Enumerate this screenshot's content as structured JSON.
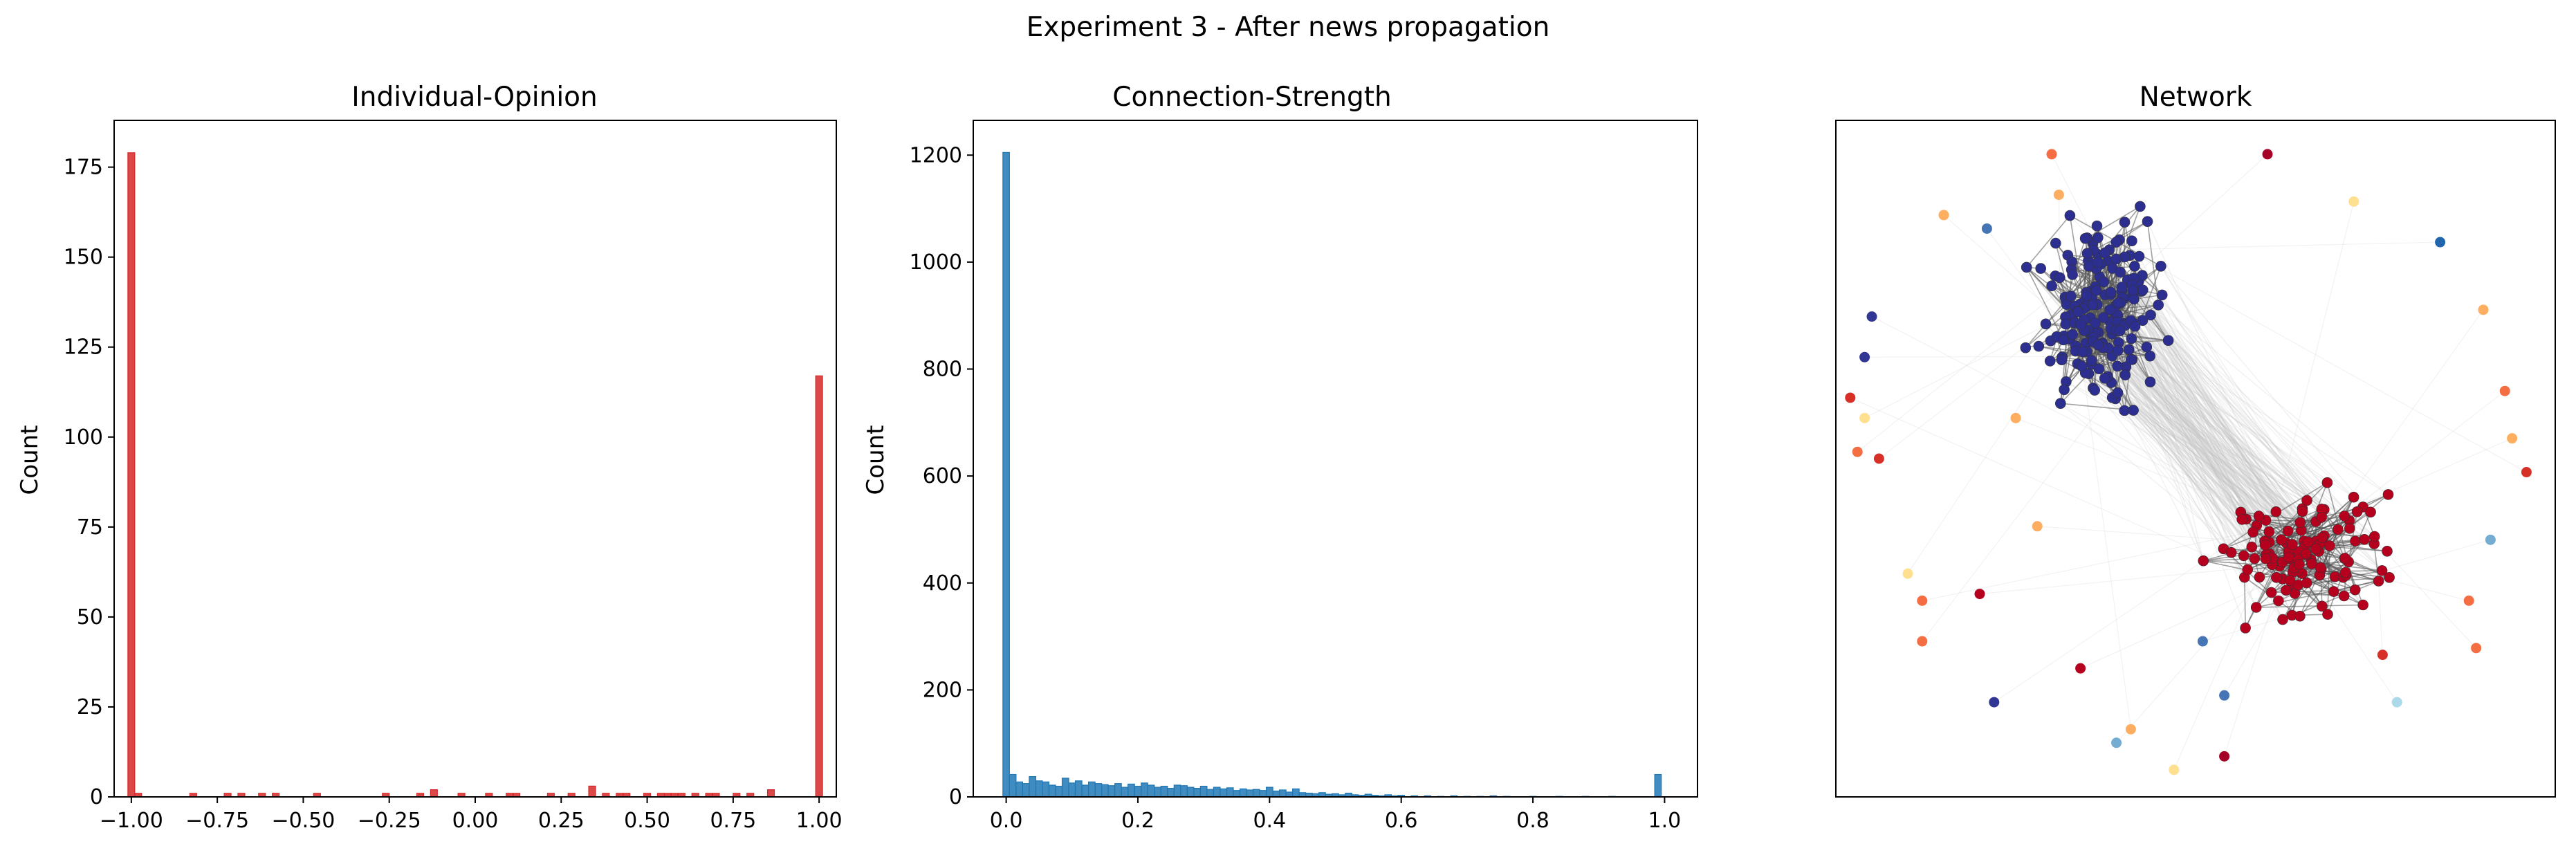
{
  "figure": {
    "title": "Experiment 3 - After news propagation"
  },
  "chart_data": [
    {
      "type": "bar",
      "subtype": "histogram",
      "title": "Individual-Opinion",
      "xlabel": "",
      "ylabel": "Count",
      "xlim": [
        -1.05,
        1.05
      ],
      "ylim": [
        0,
        188
      ],
      "bin_width": 0.02,
      "color": "#d62728",
      "xticks": [
        -1.0,
        -0.75,
        -0.5,
        -0.25,
        0.0,
        0.25,
        0.5,
        0.75,
        1.0
      ],
      "xtick_labels": [
        "−1.00",
        "−0.75",
        "−0.50",
        "−0.25",
        "0.00",
        "0.25",
        "0.50",
        "0.75",
        "1.00"
      ],
      "yticks": [
        0,
        25,
        50,
        75,
        100,
        125,
        150,
        175
      ],
      "ytick_labels": [
        "0",
        "25",
        "50",
        "75",
        "100",
        "125",
        "150",
        "175"
      ],
      "bins": [
        {
          "x": -1.0,
          "count": 179
        },
        {
          "x": -0.98,
          "count": 1
        },
        {
          "x": -0.82,
          "count": 1
        },
        {
          "x": -0.72,
          "count": 1
        },
        {
          "x": -0.68,
          "count": 1
        },
        {
          "x": -0.62,
          "count": 1
        },
        {
          "x": -0.58,
          "count": 1
        },
        {
          "x": -0.46,
          "count": 1
        },
        {
          "x": -0.26,
          "count": 1
        },
        {
          "x": -0.16,
          "count": 1
        },
        {
          "x": -0.12,
          "count": 2
        },
        {
          "x": -0.04,
          "count": 1
        },
        {
          "x": 0.04,
          "count": 1
        },
        {
          "x": 0.1,
          "count": 1
        },
        {
          "x": 0.12,
          "count": 1
        },
        {
          "x": 0.22,
          "count": 1
        },
        {
          "x": 0.28,
          "count": 1
        },
        {
          "x": 0.34,
          "count": 3
        },
        {
          "x": 0.38,
          "count": 1
        },
        {
          "x": 0.42,
          "count": 1
        },
        {
          "x": 0.44,
          "count": 1
        },
        {
          "x": 0.5,
          "count": 1
        },
        {
          "x": 0.54,
          "count": 1
        },
        {
          "x": 0.56,
          "count": 1
        },
        {
          "x": 0.58,
          "count": 1
        },
        {
          "x": 0.6,
          "count": 1
        },
        {
          "x": 0.64,
          "count": 1
        },
        {
          "x": 0.68,
          "count": 1
        },
        {
          "x": 0.7,
          "count": 1
        },
        {
          "x": 0.76,
          "count": 1
        },
        {
          "x": 0.8,
          "count": 1
        },
        {
          "x": 0.86,
          "count": 2
        },
        {
          "x": 1.0,
          "count": 117
        }
      ]
    },
    {
      "type": "bar",
      "subtype": "histogram",
      "title": "Connection-Strength",
      "xlabel": "",
      "ylabel": "Count",
      "xlim": [
        -0.05,
        1.05
      ],
      "ylim": [
        0,
        1265
      ],
      "bin_width": 0.01,
      "color": "#1f77b4",
      "xticks": [
        0.0,
        0.2,
        0.4,
        0.6,
        0.8,
        1.0
      ],
      "xtick_labels": [
        "0.0",
        "0.2",
        "0.4",
        "0.6",
        "0.8",
        "1.0"
      ],
      "yticks": [
        0,
        200,
        400,
        600,
        800,
        1000,
        1200
      ],
      "ytick_labels": [
        "0",
        "200",
        "400",
        "600",
        "800",
        "1000",
        "1200"
      ],
      "bins": [
        {
          "x": 0.0,
          "count": 1205
        },
        {
          "x": 0.01,
          "count": 42
        },
        {
          "x": 0.02,
          "count": 28
        },
        {
          "x": 0.03,
          "count": 25
        },
        {
          "x": 0.04,
          "count": 38
        },
        {
          "x": 0.05,
          "count": 30
        },
        {
          "x": 0.06,
          "count": 28
        },
        {
          "x": 0.07,
          "count": 22
        },
        {
          "x": 0.08,
          "count": 20
        },
        {
          "x": 0.09,
          "count": 35
        },
        {
          "x": 0.1,
          "count": 26
        },
        {
          "x": 0.11,
          "count": 30
        },
        {
          "x": 0.12,
          "count": 22
        },
        {
          "x": 0.13,
          "count": 28
        },
        {
          "x": 0.14,
          "count": 25
        },
        {
          "x": 0.15,
          "count": 23
        },
        {
          "x": 0.16,
          "count": 21
        },
        {
          "x": 0.17,
          "count": 25
        },
        {
          "x": 0.18,
          "count": 18
        },
        {
          "x": 0.19,
          "count": 24
        },
        {
          "x": 0.2,
          "count": 20
        },
        {
          "x": 0.21,
          "count": 26
        },
        {
          "x": 0.22,
          "count": 22
        },
        {
          "x": 0.23,
          "count": 18
        },
        {
          "x": 0.24,
          "count": 20
        },
        {
          "x": 0.25,
          "count": 16
        },
        {
          "x": 0.26,
          "count": 22
        },
        {
          "x": 0.27,
          "count": 21
        },
        {
          "x": 0.28,
          "count": 18
        },
        {
          "x": 0.29,
          "count": 16
        },
        {
          "x": 0.3,
          "count": 20
        },
        {
          "x": 0.31,
          "count": 14
        },
        {
          "x": 0.32,
          "count": 18
        },
        {
          "x": 0.33,
          "count": 15
        },
        {
          "x": 0.34,
          "count": 17
        },
        {
          "x": 0.35,
          "count": 12
        },
        {
          "x": 0.36,
          "count": 15
        },
        {
          "x": 0.37,
          "count": 13
        },
        {
          "x": 0.38,
          "count": 14
        },
        {
          "x": 0.39,
          "count": 12
        },
        {
          "x": 0.4,
          "count": 18
        },
        {
          "x": 0.41,
          "count": 11
        },
        {
          "x": 0.42,
          "count": 13
        },
        {
          "x": 0.43,
          "count": 9
        },
        {
          "x": 0.44,
          "count": 15
        },
        {
          "x": 0.45,
          "count": 8
        },
        {
          "x": 0.46,
          "count": 7
        },
        {
          "x": 0.47,
          "count": 6
        },
        {
          "x": 0.48,
          "count": 8
        },
        {
          "x": 0.49,
          "count": 5
        },
        {
          "x": 0.5,
          "count": 6
        },
        {
          "x": 0.51,
          "count": 4
        },
        {
          "x": 0.52,
          "count": 7
        },
        {
          "x": 0.53,
          "count": 4
        },
        {
          "x": 0.54,
          "count": 3
        },
        {
          "x": 0.55,
          "count": 5
        },
        {
          "x": 0.56,
          "count": 3
        },
        {
          "x": 0.57,
          "count": 2
        },
        {
          "x": 0.58,
          "count": 4
        },
        {
          "x": 0.59,
          "count": 2
        },
        {
          "x": 0.6,
          "count": 3
        },
        {
          "x": 0.62,
          "count": 2
        },
        {
          "x": 0.64,
          "count": 2
        },
        {
          "x": 0.66,
          "count": 1
        },
        {
          "x": 0.68,
          "count": 2
        },
        {
          "x": 0.7,
          "count": 1
        },
        {
          "x": 0.72,
          "count": 1
        },
        {
          "x": 0.74,
          "count": 2
        },
        {
          "x": 0.76,
          "count": 1
        },
        {
          "x": 0.8,
          "count": 1
        },
        {
          "x": 0.84,
          "count": 1
        },
        {
          "x": 0.88,
          "count": 1
        },
        {
          "x": 0.92,
          "count": 1
        },
        {
          "x": 0.99,
          "count": 42
        }
      ]
    },
    {
      "type": "scatter",
      "subtype": "network",
      "title": "Network",
      "xlabel": "",
      "ylabel": "",
      "axis_ticks": false,
      "node_colormap": [
        "#313695",
        "#4575b4",
        "#74add1",
        "#abd9e9",
        "#fee090",
        "#fdae61",
        "#f46d43",
        "#d73027",
        "#a50026"
      ],
      "clusters": [
        {
          "name": "",
          "color": "#2c2f8f",
          "center": [
            0.37,
            0.28
          ],
          "spread": [
            0.08,
            0.12
          ],
          "size": 180
        },
        {
          "name": "",
          "color": "#b5001e",
          "center": [
            0.65,
            0.64
          ],
          "spread": [
            0.11,
            0.085
          ],
          "size": 120
        }
      ],
      "isolated_nodes": [
        {
          "x": 0.3,
          "y": 0.05,
          "color": "#f46d43"
        },
        {
          "x": 0.6,
          "y": 0.05,
          "color": "#a50026"
        },
        {
          "x": 0.15,
          "y": 0.14,
          "color": "#fdae61"
        },
        {
          "x": 0.21,
          "y": 0.16,
          "color": "#4575b4"
        },
        {
          "x": 0.31,
          "y": 0.11,
          "color": "#fdae61"
        },
        {
          "x": 0.72,
          "y": 0.12,
          "color": "#fee090"
        },
        {
          "x": 0.84,
          "y": 0.18,
          "color": "#2166ac"
        },
        {
          "x": 0.05,
          "y": 0.29,
          "color": "#313695"
        },
        {
          "x": 0.04,
          "y": 0.35,
          "color": "#313695"
        },
        {
          "x": 0.9,
          "y": 0.28,
          "color": "#fdae61"
        },
        {
          "x": 0.93,
          "y": 0.4,
          "color": "#f46d43"
        },
        {
          "x": 0.02,
          "y": 0.41,
          "color": "#d73027"
        },
        {
          "x": 0.04,
          "y": 0.44,
          "color": "#fee090"
        },
        {
          "x": 0.25,
          "y": 0.44,
          "color": "#fdae61"
        },
        {
          "x": 0.03,
          "y": 0.49,
          "color": "#f46d43"
        },
        {
          "x": 0.94,
          "y": 0.47,
          "color": "#fdae61"
        },
        {
          "x": 0.06,
          "y": 0.5,
          "color": "#d73027"
        },
        {
          "x": 0.96,
          "y": 0.52,
          "color": "#d73027"
        },
        {
          "x": 0.28,
          "y": 0.6,
          "color": "#fdae61"
        },
        {
          "x": 0.91,
          "y": 0.62,
          "color": "#74add1"
        },
        {
          "x": 0.1,
          "y": 0.67,
          "color": "#fee090"
        },
        {
          "x": 0.2,
          "y": 0.7,
          "color": "#b5001e"
        },
        {
          "x": 0.12,
          "y": 0.71,
          "color": "#f46d43"
        },
        {
          "x": 0.88,
          "y": 0.71,
          "color": "#f46d43"
        },
        {
          "x": 0.12,
          "y": 0.77,
          "color": "#f46d43"
        },
        {
          "x": 0.51,
          "y": 0.77,
          "color": "#4575b4"
        },
        {
          "x": 0.89,
          "y": 0.78,
          "color": "#f46d43"
        },
        {
          "x": 0.76,
          "y": 0.79,
          "color": "#d73027"
        },
        {
          "x": 0.34,
          "y": 0.81,
          "color": "#b5001e"
        },
        {
          "x": 0.22,
          "y": 0.86,
          "color": "#313695"
        },
        {
          "x": 0.54,
          "y": 0.85,
          "color": "#4575b4"
        },
        {
          "x": 0.78,
          "y": 0.86,
          "color": "#abd9e9"
        },
        {
          "x": 0.41,
          "y": 0.9,
          "color": "#fdae61"
        },
        {
          "x": 0.39,
          "y": 0.92,
          "color": "#74add1"
        },
        {
          "x": 0.54,
          "y": 0.94,
          "color": "#a50026"
        },
        {
          "x": 0.47,
          "y": 0.96,
          "color": "#fee090"
        }
      ]
    }
  ]
}
